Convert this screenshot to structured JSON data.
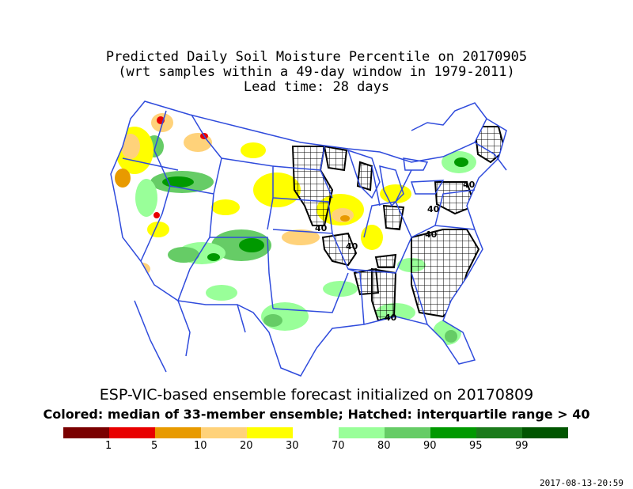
{
  "title": {
    "line1": "Predicted Daily Soil Moisture Percentile on 20170905",
    "line2": "(wrt samples within a 49-day window in 1979-2011)",
    "line3": "Lead time: 28 days"
  },
  "caption": {
    "forecast": "ESP-VIC-based ensemble forecast initialized on 20170809",
    "legend": "Colored: median of 33-member ensemble; Hatched: interquartile range > 40"
  },
  "contour_label": "40",
  "colors": {
    "boundary": "#2f4bdc",
    "c1": "#7a0000",
    "c2": "#e80000",
    "c3": "#e89a00",
    "c4": "#ffd27a",
    "c5": "#ffff00",
    "c6": "#ffffff",
    "c7": "#99ff99",
    "c8": "#66cc66",
    "c9": "#009900",
    "c10": "#1a7a1a",
    "c11": "#005500"
  },
  "colorbar": {
    "ticks": [
      "1",
      "5",
      "10",
      "20",
      "30",
      "70",
      "80",
      "90",
      "95",
      "99"
    ]
  },
  "timestamp": "2017-08-13-20:59"
}
